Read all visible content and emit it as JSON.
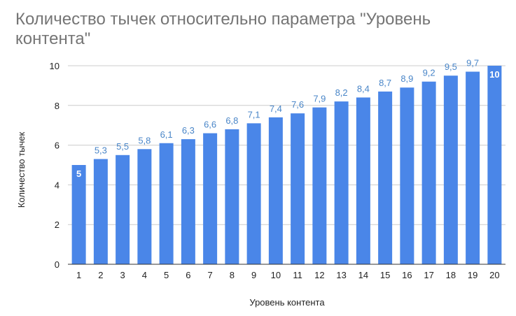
{
  "chart_data": {
    "type": "bar",
    "title": "Количество тычек относительно параметра \"Уровень контента\"",
    "xlabel": "Уровень контента",
    "ylabel": "Количество тычек",
    "categories": [
      "1",
      "2",
      "3",
      "4",
      "5",
      "6",
      "7",
      "8",
      "9",
      "10",
      "11",
      "12",
      "13",
      "14",
      "15",
      "16",
      "17",
      "18",
      "19",
      "20"
    ],
    "values": [
      5,
      5.3,
      5.5,
      5.8,
      6.1,
      6.3,
      6.6,
      6.8,
      7.1,
      7.4,
      7.6,
      7.9,
      8.2,
      8.4,
      8.7,
      8.9,
      9.2,
      9.5,
      9.7,
      10
    ],
    "data_labels": [
      "5",
      "5,3",
      "5,5",
      "5,8",
      "6,1",
      "6,3",
      "6,6",
      "6,8",
      "7,1",
      "7,4",
      "7,6",
      "7,9",
      "8,2",
      "8,4",
      "8,7",
      "8,9",
      "9,2",
      "9,5",
      "9,7",
      "10"
    ],
    "yticks": [
      "0",
      "2",
      "4",
      "6",
      "8",
      "10"
    ],
    "ylim": [
      0,
      10
    ],
    "grid": true,
    "legend": "none",
    "colors": {
      "bar": "#4a86e8",
      "label": "#4a86c8",
      "title": "#757575",
      "grid": "#cccccc"
    }
  }
}
